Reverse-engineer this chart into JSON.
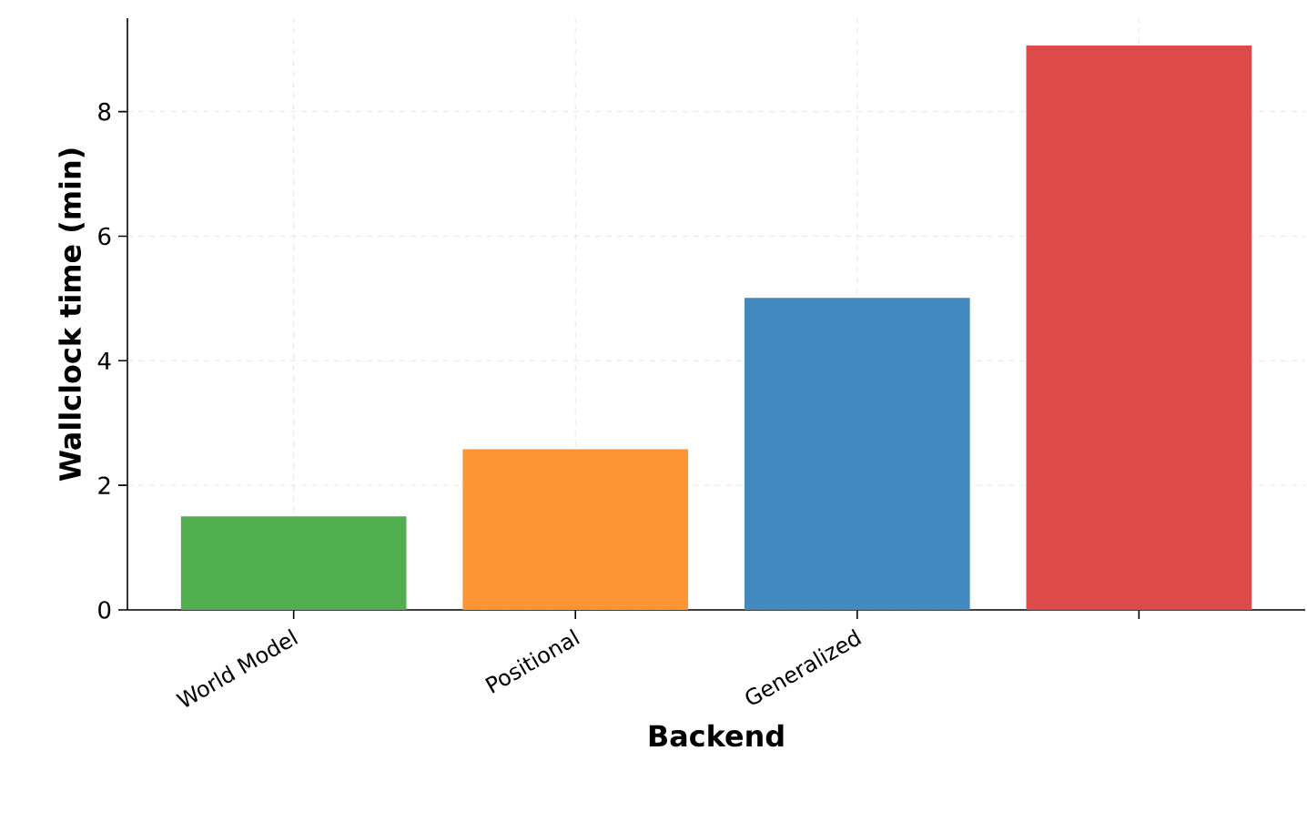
{
  "chart_data": {
    "type": "bar",
    "xlabel": "Backend",
    "ylabel": "Wallclock time (min)",
    "categories": [
      "World Model",
      "Positional",
      "Generalized",
      null
    ],
    "values": [
      1.5,
      2.58,
      5.01,
      9.06
    ],
    "colors": [
      "#50ae4f",
      "#fd9535",
      "#4289c0",
      "#dc4a4a"
    ],
    "ylim": [
      0,
      9.5
    ],
    "yticks": [
      0,
      2,
      4,
      6,
      8
    ],
    "grid": true
  }
}
